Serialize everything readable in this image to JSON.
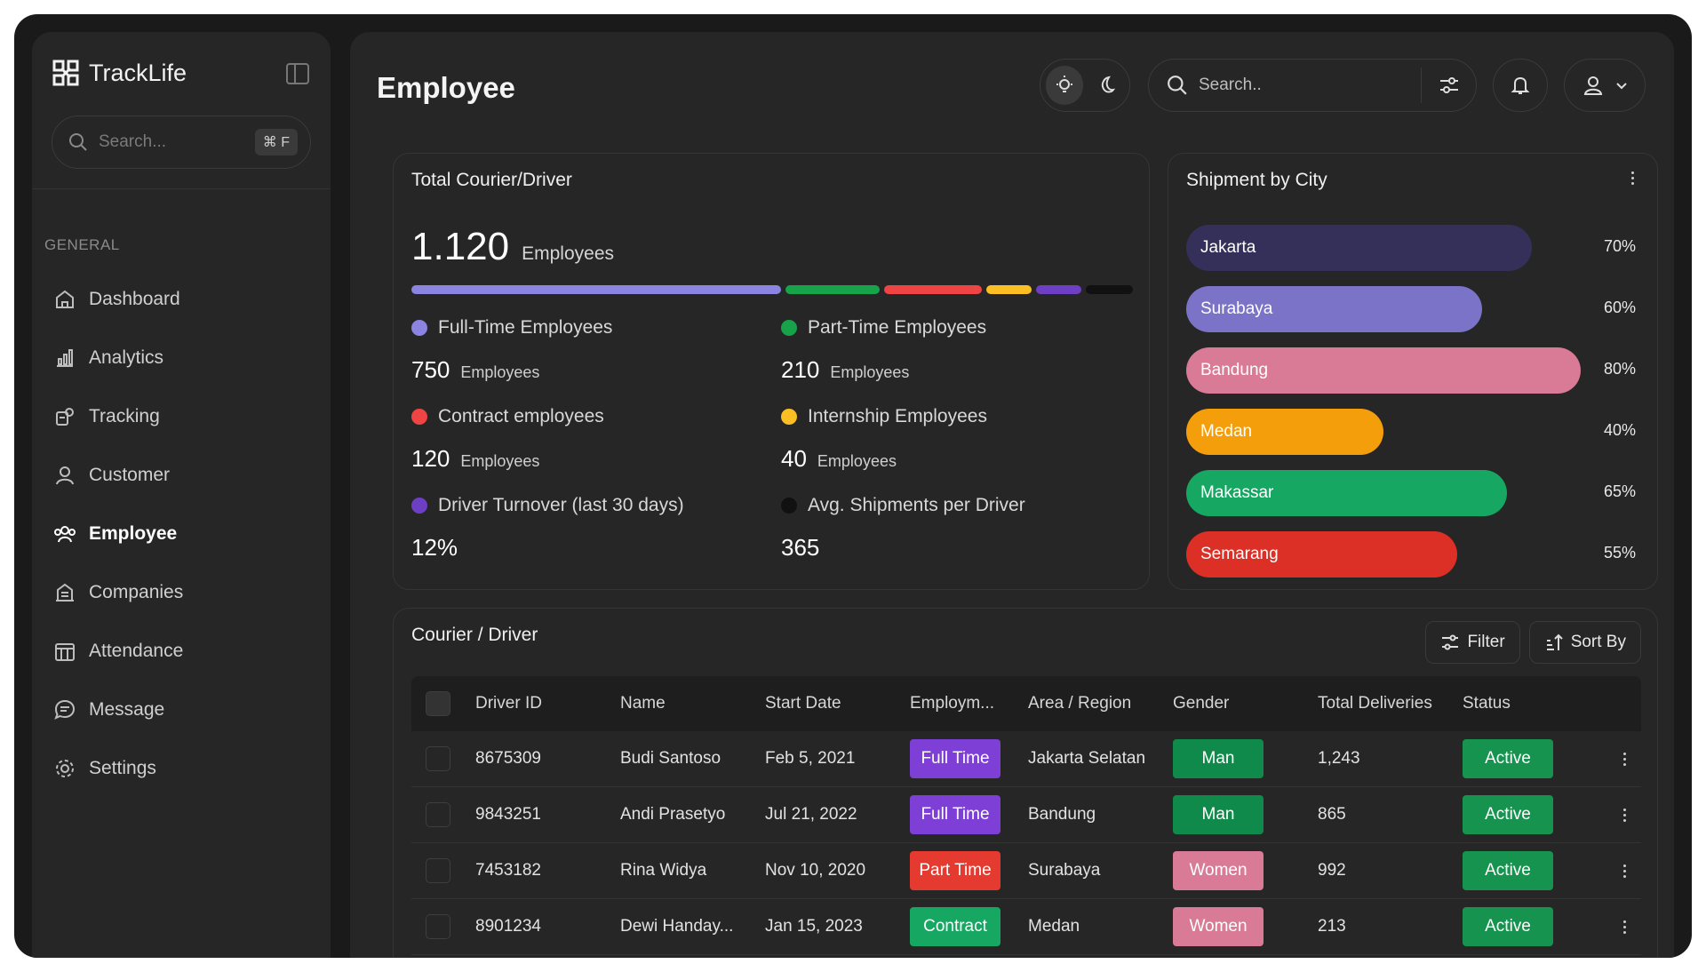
{
  "app": {
    "name": "TrackLife"
  },
  "sidebar": {
    "search_placeholder": "Search...",
    "shortcut": "⌘ F",
    "section_label": "GENERAL",
    "items": [
      {
        "label": "Dashboard",
        "icon": "home-icon",
        "active": false
      },
      {
        "label": "Analytics",
        "icon": "analytics-icon",
        "active": false
      },
      {
        "label": "Tracking",
        "icon": "tracking-icon",
        "active": false
      },
      {
        "label": "Customer",
        "icon": "customer-icon",
        "active": false
      },
      {
        "label": "Employee",
        "icon": "employee-icon",
        "active": true
      },
      {
        "label": "Companies",
        "icon": "companies-icon",
        "active": false
      },
      {
        "label": "Attendance",
        "icon": "attendance-icon",
        "active": false
      },
      {
        "label": "Message",
        "icon": "message-icon",
        "active": false
      },
      {
        "label": "Settings",
        "icon": "settings-icon",
        "active": false
      }
    ]
  },
  "header": {
    "title": "Employee",
    "search_placeholder": "Search.."
  },
  "total_card": {
    "title": "Total Courier/Driver",
    "total": "1.120",
    "total_unit": "Employees",
    "stats": [
      {
        "label": "Full-Time Employees",
        "value": "750",
        "unit": "Employees",
        "color": "#8b84e0"
      },
      {
        "label": "Part-Time Employees",
        "value": "210",
        "unit": "Employees",
        "color": "#16a34a"
      },
      {
        "label": "Contract employees",
        "value": "120",
        "unit": "Employees",
        "color": "#ef4444"
      },
      {
        "label": "Internship Employees",
        "value": "40",
        "unit": "Employees",
        "color": "#fbbf24"
      },
      {
        "label": "Driver Turnover (last 30 days)",
        "value": "12%",
        "unit": "",
        "color": "#6d3fc4"
      },
      {
        "label": "Avg. Shipments per Driver",
        "value": "365",
        "unit": "",
        "color": "#111111"
      }
    ]
  },
  "city_card": {
    "title": "Shipment by City",
    "cities": [
      {
        "name": "Jakarta",
        "percent": 70,
        "label": "70%",
        "color": "#34305a",
        "text_color": "#ffffff"
      },
      {
        "name": "Surabaya",
        "percent": 60,
        "label": "60%",
        "color": "#7a73c7",
        "text_color": "#ffffff"
      },
      {
        "name": "Bandung",
        "percent": 80,
        "label": "80%",
        "color": "#d97a96",
        "text_color": "#ffffff"
      },
      {
        "name": "Medan",
        "percent": 40,
        "label": "40%",
        "color": "#f59e0b",
        "text_color": "#ffffff"
      },
      {
        "name": "Makassar",
        "percent": 65,
        "label": "65%",
        "color": "#16a863",
        "text_color": "#ffffff"
      },
      {
        "name": "Semarang",
        "percent": 55,
        "label": "55%",
        "color": "#dc2f26",
        "text_color": "#ffffff"
      }
    ]
  },
  "table_card": {
    "title": "Courier / Driver",
    "filter_label": "Filter",
    "sort_label": "Sort By",
    "columns": [
      "Driver ID",
      "Name",
      "Start Date",
      "Employm...",
      "Area / Region",
      "Gender",
      "Total Deliveries",
      "Status"
    ],
    "rows": [
      {
        "id": "8675309",
        "name": "Budi Santoso",
        "start": "Feb 5, 2021",
        "type": "Full Time",
        "type_color": "#7e3fd6",
        "area": "Jakarta Selatan",
        "gender": "Man",
        "gender_color": "#0f8a4a",
        "deliveries": "1,243",
        "status": "Active",
        "status_color": "#16934e"
      },
      {
        "id": "9843251",
        "name": "Andi Prasetyo",
        "start": "Jul 21, 2022",
        "type": "Full Time",
        "type_color": "#7e3fd6",
        "area": "Bandung",
        "gender": "Man",
        "gender_color": "#0f8a4a",
        "deliveries": "865",
        "status": "Active",
        "status_color": "#16934e"
      },
      {
        "id": "7453182",
        "name": "Rina Widya",
        "start": "Nov 10, 2020",
        "type": "Part Time",
        "type_color": "#e53a2f",
        "area": "Surabaya",
        "gender": "Women",
        "gender_color": "#d97a96",
        "deliveries": "992",
        "status": "Active",
        "status_color": "#16934e"
      },
      {
        "id": "8901234",
        "name": "Dewi Handay...",
        "start": "Jan 15, 2023",
        "type": "Contract",
        "type_color": "#16a863",
        "area": "Medan",
        "gender": "Women",
        "gender_color": "#d97a96",
        "deliveries": "213",
        "status": "Active",
        "status_color": "#16934e"
      }
    ]
  }
}
